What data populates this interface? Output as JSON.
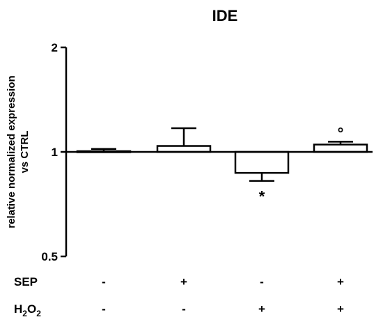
{
  "chart_data": {
    "type": "bar",
    "title": "IDE",
    "ylabel_line1": "relative normalized expression",
    "ylabel_line2": "vs CTRL",
    "yscale": "log2",
    "ylim": [
      0.5,
      2
    ],
    "baseline": 1,
    "yticks": [
      {
        "value": 0.5,
        "label": "0.5"
      },
      {
        "value": 1,
        "label": "1"
      },
      {
        "value": 2,
        "label": "2"
      }
    ],
    "bars": [
      {
        "value": 1.005,
        "err": 0.015,
        "annotation": ""
      },
      {
        "value": 1.04,
        "err": 0.13,
        "annotation": ""
      },
      {
        "value": 0.87,
        "err": 0.045,
        "annotation": "*"
      },
      {
        "value": 1.05,
        "err": 0.02,
        "annotation": "°"
      }
    ],
    "conditions": [
      {
        "label": "SEP",
        "values": [
          "-",
          "+",
          "-",
          "+"
        ]
      },
      {
        "label": "H",
        "sub": "2",
        "label_mid": "O",
        "sub2": "2",
        "values": [
          "-",
          "-",
          "+",
          "+"
        ]
      }
    ]
  }
}
